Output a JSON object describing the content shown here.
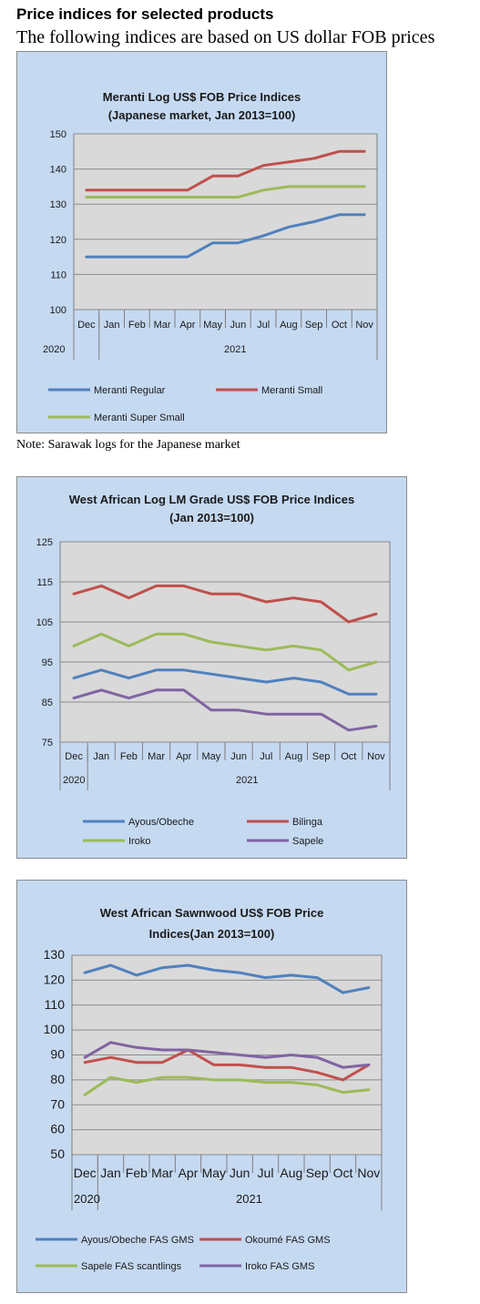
{
  "page": {
    "heading": "Price indices for selected products",
    "subheading": "The following indices are based on US dollar FOB prices",
    "note": "Note: Sarawak logs for the Japanese market"
  },
  "chart_data": [
    {
      "type": "line",
      "title": [
        "Meranti Log US$ FOB Price Indices",
        "(Japanese market, Jan 2013=100)"
      ],
      "categories": [
        "Dec",
        "Jan",
        "Feb",
        "Mar",
        "Apr",
        "May",
        "Jun",
        "Jul",
        "Aug",
        "Sep",
        "Oct",
        "Nov"
      ],
      "year_labels": [
        "2020",
        "2021"
      ],
      "ylim": [
        100,
        150
      ],
      "yticks": [
        100,
        110,
        120,
        130,
        140,
        150
      ],
      "grid": "horizontal",
      "plot_background": "#d9d9d9",
      "legend_position": "bottom",
      "series": [
        {
          "name": "Meranti Regular",
          "color": "#4f81bd",
          "values": [
            115,
            115,
            115,
            115,
            115,
            119,
            119,
            121,
            123.5,
            125,
            127,
            127
          ]
        },
        {
          "name": "Meranti Small",
          "color": "#c0504d",
          "values": [
            134,
            134,
            134,
            134,
            134,
            138,
            138,
            141,
            142,
            143,
            145,
            145
          ]
        },
        {
          "name": "Meranti Super Small",
          "color": "#9bbb59",
          "values": [
            132,
            132,
            132,
            132,
            132,
            132,
            132,
            134,
            135,
            135,
            135,
            135
          ]
        }
      ]
    },
    {
      "type": "line",
      "title": [
        "West African Log LM Grade US$ FOB Price Indices",
        "(Jan 2013=100)"
      ],
      "categories": [
        "Dec",
        "Jan",
        "Feb",
        "Mar",
        "Apr",
        "May",
        "Jun",
        "Jul",
        "Aug",
        "Sep",
        "Oct",
        "Nov"
      ],
      "year_labels": [
        "2020",
        "2021"
      ],
      "ylim": [
        75,
        125
      ],
      "yticks": [
        75,
        85,
        95,
        105,
        115,
        125
      ],
      "grid": "horizontal",
      "plot_background": "#d9d9d9",
      "legend_position": "bottom",
      "series": [
        {
          "name": "Ayous/Obeche",
          "color": "#4f81bd",
          "values": [
            91,
            93,
            91,
            93,
            93,
            92,
            91,
            90,
            91,
            90,
            87,
            87
          ]
        },
        {
          "name": "Bilinga",
          "color": "#c0504d",
          "values": [
            112,
            114,
            111,
            114,
            114,
            112,
            112,
            110,
            111,
            110,
            105,
            107
          ]
        },
        {
          "name": "Iroko",
          "color": "#9bbb59",
          "values": [
            99,
            102,
            99,
            102,
            102,
            100,
            99,
            98,
            99,
            98,
            93,
            95
          ]
        },
        {
          "name": "Sapele",
          "color": "#8064a2",
          "values": [
            86,
            88,
            86,
            88,
            88,
            83,
            83,
            82,
            82,
            82,
            78,
            79
          ]
        }
      ]
    },
    {
      "type": "line",
      "title": [
        "West African Sawnwood US$ FOB Price",
        "Indices(Jan 2013=100)"
      ],
      "categories": [
        "Dec",
        "Jan",
        "Feb",
        "Mar",
        "Apr",
        "May",
        "Jun",
        "Jul",
        "Aug",
        "Sep",
        "Oct",
        "Nov"
      ],
      "year_labels": [
        "2020",
        "2021"
      ],
      "ylim": [
        50,
        130
      ],
      "yticks": [
        50,
        60,
        70,
        80,
        90,
        100,
        110,
        120,
        130
      ],
      "grid": "horizontal",
      "plot_background": "#d9d9d9",
      "legend_position": "bottom",
      "series": [
        {
          "name": "Ayous/Obeche  FAS GMS",
          "color": "#4f81bd",
          "values": [
            123,
            126,
            122,
            125,
            126,
            124,
            123,
            121,
            122,
            121,
            115,
            117
          ]
        },
        {
          "name": "Okoumé  FAS GMS",
          "color": "#c0504d",
          "values": [
            87,
            89,
            87,
            87,
            92,
            86,
            86,
            85,
            85,
            83,
            80,
            86
          ]
        },
        {
          "name": "Sapele FAS scantlings",
          "color": "#9bbb59",
          "values": [
            74,
            81,
            79,
            81,
            81,
            80,
            80,
            79,
            79,
            78,
            75,
            76
          ]
        },
        {
          "name": "Iroko FAS GMS",
          "color": "#8064a2",
          "values": [
            89,
            95,
            93,
            92,
            92,
            91,
            90,
            89,
            90,
            89,
            85,
            86
          ]
        }
      ]
    }
  ]
}
